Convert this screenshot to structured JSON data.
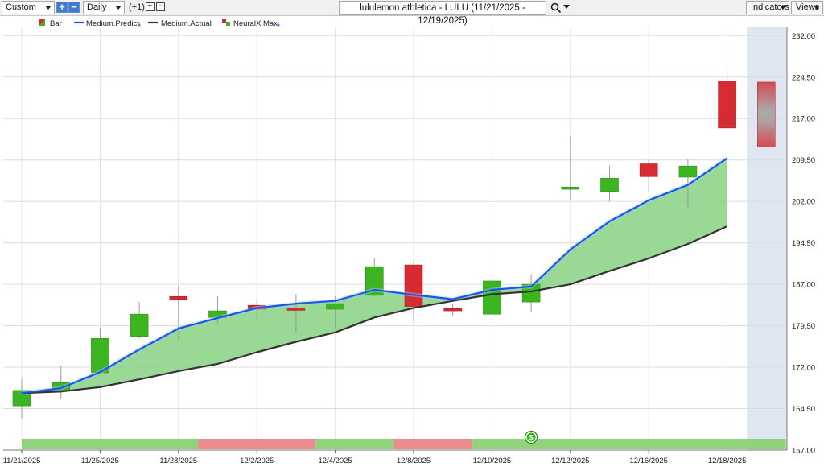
{
  "toolbar": {
    "range_select": "Custom",
    "period_select": "Daily",
    "offset_label": "(+1)",
    "chart_title": "lululemon athletica - LULU (11/21/2025 - 12/19/2025)",
    "indicators_label": "Indicators",
    "views_label": "Views"
  },
  "legend": [
    {
      "label": "Bar",
      "icon": "bar-color-icon"
    },
    {
      "label": "Medium.Predict",
      "color": "#1a56e8"
    },
    {
      "label": "Medium.Actual",
      "color": "#333333"
    },
    {
      "label": "NeuralX.Max",
      "icon": "neuralx-icon"
    }
  ],
  "colors": {
    "up": "#3cb521",
    "down": "#d62b32",
    "predict_line": "#1a56e8",
    "actual_line": "#333333",
    "band_fill": "#8fd48a",
    "strip_up": "#8fd47a",
    "strip_down": "#ec8b8b",
    "forecast_shade": "#dfe6f2"
  },
  "chart_data": {
    "type": "candlestick",
    "title": "lululemon athletica - LULU (11/21/2025 - 12/19/2025)",
    "ylim": [
      157,
      233.5
    ],
    "y_ticks": [
      "232.00",
      "224.50",
      "217.00",
      "209.50",
      "202.00",
      "194.50",
      "187.00",
      "179.50",
      "172.00",
      "164.50",
      "157.00"
    ],
    "x_tick_labels": [
      "11/21/2025",
      "11/25/2025",
      "11/28/2025",
      "12/2/2025",
      "12/4/2025",
      "12/8/2025",
      "12/10/2025",
      "12/12/2025",
      "12/16/2025",
      "12/18/2025"
    ],
    "x_tick_index": [
      0,
      2,
      4,
      6,
      8,
      10,
      12,
      14,
      16,
      18
    ],
    "candles": [
      {
        "open": 165.0,
        "high": 169.8,
        "low": 162.8,
        "close": 167.8
      },
      {
        "open": 167.8,
        "high": 172.2,
        "low": 166.2,
        "close": 169.2
      },
      {
        "open": 171.0,
        "high": 179.2,
        "low": 170.8,
        "close": 177.2
      },
      {
        "open": 177.6,
        "high": 183.8,
        "low": 177.2,
        "close": 181.6
      },
      {
        "open": 184.8,
        "high": 186.8,
        "low": 177.0,
        "close": 184.3
      },
      {
        "open": 181.0,
        "high": 184.8,
        "low": 180.0,
        "close": 182.2
      },
      {
        "open": 183.2,
        "high": 184.2,
        "low": 180.5,
        "close": 182.5
      },
      {
        "open": 182.7,
        "high": 185.2,
        "low": 178.2,
        "close": 182.3
      },
      {
        "open": 182.5,
        "high": 184.8,
        "low": 179.0,
        "close": 183.5
      },
      {
        "open": 185.0,
        "high": 191.8,
        "low": 184.8,
        "close": 190.2
      },
      {
        "open": 190.5,
        "high": 191.2,
        "low": 180.2,
        "close": 183.0
      },
      {
        "open": 182.6,
        "high": 183.4,
        "low": 181.3,
        "close": 182.2
      },
      {
        "open": 181.6,
        "high": 188.5,
        "low": 181.5,
        "close": 187.6
      },
      {
        "open": 183.8,
        "high": 188.8,
        "low": 182.0,
        "close": 187.0
      },
      {
        "open": 204.2,
        "high": 213.8,
        "low": 202.3,
        "close": 204.6
      },
      {
        "open": 203.8,
        "high": 208.5,
        "low": 202.0,
        "close": 206.2
      },
      {
        "open": 208.8,
        "high": 209.5,
        "low": 203.6,
        "close": 206.5
      },
      {
        "open": 206.4,
        "high": 209.6,
        "low": 200.8,
        "close": 208.4
      },
      {
        "open": 223.8,
        "high": 226.0,
        "low": 215.2,
        "close": 215.3
      }
    ],
    "series": [
      {
        "name": "Medium.Predict",
        "values": [
          167.3,
          168.2,
          171.1,
          175.2,
          179.0,
          180.9,
          182.7,
          183.5,
          184.0,
          186.0,
          185.1,
          184.3,
          186.0,
          186.6,
          193.3,
          198.4,
          202.2,
          205.0,
          209.8
        ]
      },
      {
        "name": "Medium.Actual",
        "values": [
          167.3,
          167.6,
          168.4,
          169.8,
          171.3,
          172.6,
          174.7,
          176.6,
          178.3,
          181.0,
          182.7,
          184.0,
          185.2,
          185.7,
          187.0,
          189.4,
          191.7,
          194.3,
          197.5
        ]
      }
    ],
    "forecast": {
      "index": 19,
      "top": 223.6,
      "bottom": 211.9
    },
    "signal_strip": [
      {
        "from": 0,
        "to": 4.5,
        "state": "up"
      },
      {
        "from": 4.5,
        "to": 7.5,
        "state": "down"
      },
      {
        "from": 7.5,
        "to": 9.5,
        "state": "up"
      },
      {
        "from": 9.5,
        "to": 11.5,
        "state": "down"
      },
      {
        "from": 11.5,
        "to": 19.5,
        "state": "up"
      }
    ],
    "signal_marker": {
      "index": 13,
      "symbol": "$"
    },
    "grid": true
  }
}
